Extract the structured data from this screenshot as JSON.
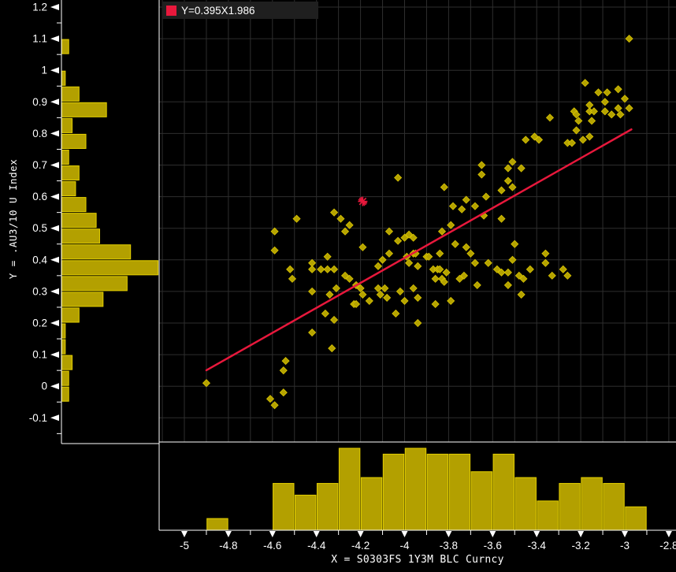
{
  "legend": {
    "label": "Y=0.395X1.986"
  },
  "axes": {
    "x": {
      "title": "X = S0303FS 1Y3M BLC Curncy",
      "tick_labels": [
        "-5",
        "-4.8",
        "-4.6",
        "-4.4",
        "-4.2",
        "-4",
        "-3.8",
        "-3.6",
        "-3.4",
        "-3.2",
        "-3",
        "-2.8"
      ]
    },
    "y": {
      "title": "Y = .AU3/10 U Index",
      "tick_labels": [
        "1.2",
        "1.1",
        "1",
        "0.9",
        "0.8",
        "0.7",
        "0.6",
        "0.5",
        "0.4",
        "0.3",
        "0.2",
        "0.1",
        "0",
        "-0.1"
      ]
    }
  },
  "colors": {
    "background": "#000000",
    "bar_fill": "#b3a000",
    "bar_border": "#e3cf00",
    "point_fill": "#b5a300",
    "point_stroke": "#d8c400",
    "line": "#e8183c",
    "grid": "#2e2e2e",
    "axis": "#ffffff",
    "text": "#ffffff",
    "legend_bg": "#1f1f1f"
  },
  "chart_data": {
    "type": "scatter",
    "title": "",
    "xlabel": "X = S0303FS 1Y3M BLC Curncy",
    "ylabel": "Y = .AU3/10 U Index",
    "xlim": [
      -5.115,
      -2.77
    ],
    "ylim": [
      -0.177,
      1.222
    ],
    "grid": true,
    "grid_step_x": 0.1,
    "grid_step_y": 0.1,
    "legend_position": "top-left",
    "regression": {
      "label": "Y=0.395X1.986",
      "slope": 0.395,
      "intercept": 1.986,
      "x_start": -4.9,
      "x_end": -2.97
    },
    "highlight_point": {
      "x": -4.19,
      "y": 0.585,
      "marker": "asterisk"
    },
    "points": [
      [
        -4.9,
        0.01
      ],
      [
        -4.61,
        -0.04
      ],
      [
        -4.59,
        -0.06
      ],
      [
        -4.59,
        0.43
      ],
      [
        -4.59,
        0.49
      ],
      [
        -4.55,
        -0.02
      ],
      [
        -4.55,
        0.05
      ],
      [
        -4.54,
        0.08
      ],
      [
        -4.52,
        0.37
      ],
      [
        -4.51,
        0.34
      ],
      [
        -4.49,
        0.53
      ],
      [
        -4.42,
        0.17
      ],
      [
        -4.42,
        0.3
      ],
      [
        -4.42,
        0.37
      ],
      [
        -4.42,
        0.39
      ],
      [
        -4.38,
        0.37
      ],
      [
        -4.36,
        0.23
      ],
      [
        -4.35,
        0.37
      ],
      [
        -4.35,
        0.41
      ],
      [
        -4.34,
        0.29
      ],
      [
        -4.33,
        0.12
      ],
      [
        -4.32,
        0.21
      ],
      [
        -4.32,
        0.37
      ],
      [
        -4.32,
        0.55
      ],
      [
        -4.31,
        0.31
      ],
      [
        -4.29,
        0.53
      ],
      [
        -4.27,
        0.35
      ],
      [
        -4.27,
        0.49
      ],
      [
        -4.25,
        0.34
      ],
      [
        -4.25,
        0.51
      ],
      [
        -4.23,
        0.26
      ],
      [
        -4.22,
        0.26
      ],
      [
        -4.22,
        0.32
      ],
      [
        -4.2,
        0.31
      ],
      [
        -4.19,
        0.29
      ],
      [
        -4.19,
        0.44
      ],
      [
        -4.16,
        0.27
      ],
      [
        -4.12,
        0.31
      ],
      [
        -4.12,
        0.38
      ],
      [
        -4.11,
        0.29
      ],
      [
        -4.1,
        0.4
      ],
      [
        -4.09,
        0.31
      ],
      [
        -4.08,
        0.28
      ],
      [
        -4.07,
        0.42
      ],
      [
        -4.07,
        0.49
      ],
      [
        -4.04,
        0.23
      ],
      [
        -4.03,
        0.46
      ],
      [
        -4.03,
        0.66
      ],
      [
        -4.02,
        0.3
      ],
      [
        -4.0,
        0.27
      ],
      [
        -4.0,
        0.47
      ],
      [
        -3.99,
        0.41
      ],
      [
        -3.98,
        0.39
      ],
      [
        -3.98,
        0.48
      ],
      [
        -3.96,
        0.31
      ],
      [
        -3.96,
        0.42
      ],
      [
        -3.96,
        0.47
      ],
      [
        -3.95,
        0.42
      ],
      [
        -3.94,
        0.2
      ],
      [
        -3.94,
        0.28
      ],
      [
        -3.94,
        0.38
      ],
      [
        -3.9,
        0.41
      ],
      [
        -3.89,
        0.41
      ],
      [
        -3.87,
        0.37
      ],
      [
        -3.86,
        0.26
      ],
      [
        -3.86,
        0.34
      ],
      [
        -3.85,
        0.37
      ],
      [
        -3.84,
        0.37
      ],
      [
        -3.84,
        0.42
      ],
      [
        -3.83,
        0.34
      ],
      [
        -3.83,
        0.49
      ],
      [
        -3.82,
        0.33
      ],
      [
        -3.82,
        0.63
      ],
      [
        -3.81,
        0.36
      ],
      [
        -3.79,
        0.27
      ],
      [
        -3.79,
        0.51
      ],
      [
        -3.78,
        0.57
      ],
      [
        -3.77,
        0.45
      ],
      [
        -3.75,
        0.34
      ],
      [
        -3.74,
        0.56
      ],
      [
        -3.73,
        0.35
      ],
      [
        -3.72,
        0.44
      ],
      [
        -3.72,
        0.59
      ],
      [
        -3.7,
        0.42
      ],
      [
        -3.68,
        0.39
      ],
      [
        -3.68,
        0.57
      ],
      [
        -3.67,
        0.32
      ],
      [
        -3.65,
        0.67
      ],
      [
        -3.65,
        0.7
      ],
      [
        -3.64,
        0.54
      ],
      [
        -3.63,
        0.6
      ],
      [
        -3.62,
        0.39
      ],
      [
        -3.58,
        0.37
      ],
      [
        -3.56,
        0.36
      ],
      [
        -3.56,
        0.53
      ],
      [
        -3.56,
        0.62
      ],
      [
        -3.53,
        0.32
      ],
      [
        -3.53,
        0.36
      ],
      [
        -3.53,
        0.65
      ],
      [
        -3.53,
        0.69
      ],
      [
        -3.51,
        0.4
      ],
      [
        -3.51,
        0.63
      ],
      [
        -3.51,
        0.71
      ],
      [
        -3.5,
        0.45
      ],
      [
        -3.48,
        0.35
      ],
      [
        -3.47,
        0.29
      ],
      [
        -3.47,
        0.69
      ],
      [
        -3.46,
        0.34
      ],
      [
        -3.45,
        0.78
      ],
      [
        -3.43,
        0.37
      ],
      [
        -3.41,
        0.79
      ],
      [
        -3.39,
        0.78
      ],
      [
        -3.36,
        0.39
      ],
      [
        -3.36,
        0.42
      ],
      [
        -3.34,
        0.85
      ],
      [
        -3.33,
        0.35
      ],
      [
        -3.28,
        0.37
      ],
      [
        -3.26,
        0.35
      ],
      [
        -3.26,
        0.77
      ],
      [
        -3.24,
        0.77
      ],
      [
        -3.23,
        0.87
      ],
      [
        -3.22,
        0.81
      ],
      [
        -3.22,
        0.86
      ],
      [
        -3.21,
        0.84
      ],
      [
        -3.19,
        0.78
      ],
      [
        -3.18,
        0.96
      ],
      [
        -3.16,
        0.79
      ],
      [
        -3.16,
        0.87
      ],
      [
        -3.16,
        0.89
      ],
      [
        -3.15,
        0.84
      ],
      [
        -3.14,
        0.87
      ],
      [
        -3.12,
        0.93
      ],
      [
        -3.09,
        0.87
      ],
      [
        -3.09,
        0.9
      ],
      [
        -3.08,
        0.93
      ],
      [
        -3.06,
        0.86
      ],
      [
        -3.03,
        0.88
      ],
      [
        -3.03,
        0.94
      ],
      [
        -3.02,
        0.86
      ],
      [
        -3.0,
        0.91
      ],
      [
        -2.98,
        0.88
      ],
      [
        -2.98,
        1.1
      ]
    ],
    "x_histogram": {
      "bin_start": -4.9,
      "bin_width": 0.1,
      "counts": [
        2,
        0,
        0,
        8,
        6,
        8,
        14,
        9,
        13,
        14,
        13,
        13,
        10,
        13,
        9,
        5,
        8,
        9,
        8,
        4
      ]
    },
    "y_histogram": {
      "bin_start": -0.05,
      "bin_width": 0.05,
      "counts": [
        2,
        2,
        3,
        1,
        1,
        5,
        12,
        19,
        28,
        20,
        11,
        10,
        7,
        4,
        5,
        2,
        7,
        3,
        13,
        5,
        1,
        0,
        2
      ]
    }
  }
}
